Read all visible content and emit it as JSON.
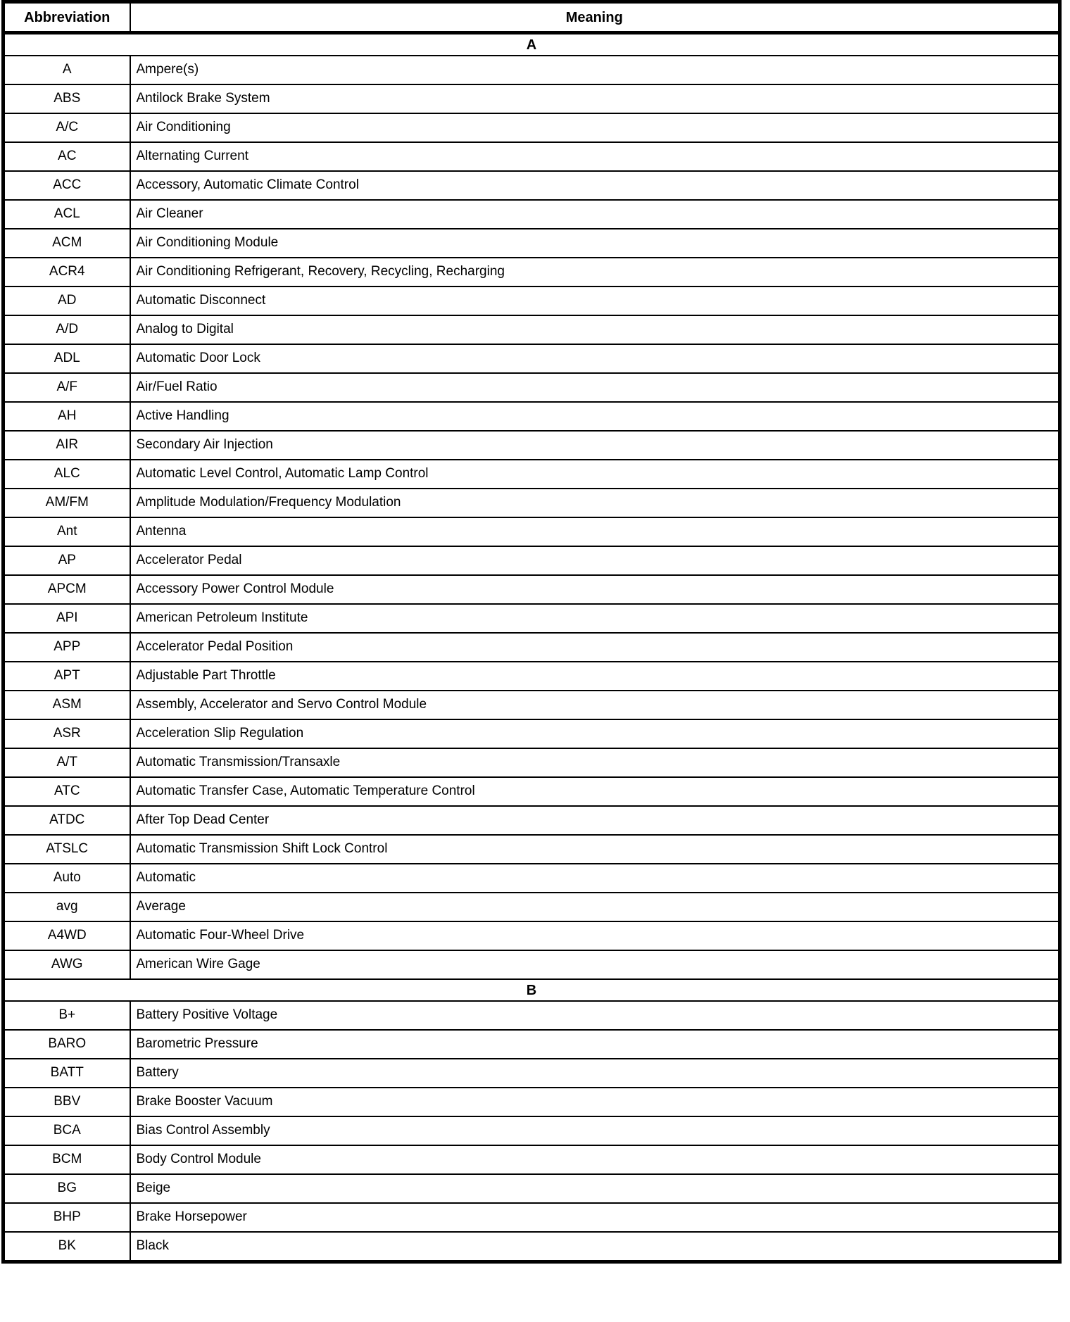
{
  "colors": {
    "background": "#ffffff",
    "border": "#000000",
    "text": "#000000"
  },
  "table": {
    "columns": {
      "abbreviation": "Abbreviation",
      "meaning": "Meaning"
    },
    "sections": [
      {
        "letter": "A",
        "rows": [
          {
            "abbr": "A",
            "meaning": "Ampere(s)"
          },
          {
            "abbr": "ABS",
            "meaning": "Antilock Brake System"
          },
          {
            "abbr": "A/C",
            "meaning": "Air Conditioning"
          },
          {
            "abbr": "AC",
            "meaning": "Alternating Current"
          },
          {
            "abbr": "ACC",
            "meaning": "Accessory, Automatic Climate Control"
          },
          {
            "abbr": "ACL",
            "meaning": "Air Cleaner"
          },
          {
            "abbr": "ACM",
            "meaning": "Air Conditioning Module"
          },
          {
            "abbr": "ACR4",
            "meaning": "Air Conditioning Refrigerant, Recovery, Recycling, Recharging"
          },
          {
            "abbr": "AD",
            "meaning": "Automatic Disconnect"
          },
          {
            "abbr": "A/D",
            "meaning": "Analog to Digital"
          },
          {
            "abbr": "ADL",
            "meaning": "Automatic Door Lock"
          },
          {
            "abbr": "A/F",
            "meaning": "Air/Fuel Ratio"
          },
          {
            "abbr": "AH",
            "meaning": "Active Handling"
          },
          {
            "abbr": "AIR",
            "meaning": "Secondary Air Injection"
          },
          {
            "abbr": "ALC",
            "meaning": "Automatic Level Control, Automatic Lamp Control"
          },
          {
            "abbr": "AM/FM",
            "meaning": "Amplitude Modulation/Frequency Modulation"
          },
          {
            "abbr": "Ant",
            "meaning": "Antenna"
          },
          {
            "abbr": "AP",
            "meaning": "Accelerator Pedal"
          },
          {
            "abbr": "APCM",
            "meaning": "Accessory Power Control Module"
          },
          {
            "abbr": "API",
            "meaning": "American Petroleum Institute"
          },
          {
            "abbr": "APP",
            "meaning": "Accelerator Pedal Position"
          },
          {
            "abbr": "APT",
            "meaning": "Adjustable Part Throttle"
          },
          {
            "abbr": "ASM",
            "meaning": "Assembly, Accelerator and Servo Control Module"
          },
          {
            "abbr": "ASR",
            "meaning": "Acceleration Slip Regulation"
          },
          {
            "abbr": "A/T",
            "meaning": "Automatic Transmission/Transaxle"
          },
          {
            "abbr": "ATC",
            "meaning": "Automatic Transfer Case, Automatic Temperature Control"
          },
          {
            "abbr": "ATDC",
            "meaning": "After Top Dead Center"
          },
          {
            "abbr": "ATSLC",
            "meaning": "Automatic Transmission Shift Lock Control"
          },
          {
            "abbr": "Auto",
            "meaning": "Automatic"
          },
          {
            "abbr": "avg",
            "meaning": "Average"
          },
          {
            "abbr": "A4WD",
            "meaning": "Automatic Four-Wheel Drive"
          },
          {
            "abbr": "AWG",
            "meaning": "American Wire Gage"
          }
        ]
      },
      {
        "letter": "B",
        "rows": [
          {
            "abbr": "B+",
            "meaning": "Battery Positive Voltage"
          },
          {
            "abbr": "BARO",
            "meaning": "Barometric Pressure"
          },
          {
            "abbr": "BATT",
            "meaning": "Battery"
          },
          {
            "abbr": "BBV",
            "meaning": "Brake Booster Vacuum"
          },
          {
            "abbr": "BCA",
            "meaning": "Bias Control Assembly"
          },
          {
            "abbr": "BCM",
            "meaning": "Body Control Module"
          },
          {
            "abbr": "BG",
            "meaning": "Beige"
          },
          {
            "abbr": "BHP",
            "meaning": "Brake Horsepower"
          },
          {
            "abbr": "BK",
            "meaning": "Black"
          }
        ]
      }
    ]
  }
}
